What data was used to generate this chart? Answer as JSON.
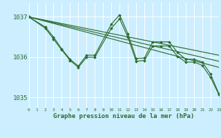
{
  "background_color": "#cceeff",
  "grid_color": "#ffffff",
  "line_color": "#2d6b2d",
  "xlabel": "Graphe pression niveau de la mer (hPa)",
  "xlim": [
    0,
    23
  ],
  "ylim": [
    1034.75,
    1037.35
  ],
  "yticks": [
    1035,
    1036,
    1037
  ],
  "xticks": [
    0,
    1,
    2,
    3,
    4,
    5,
    6,
    7,
    8,
    9,
    10,
    11,
    12,
    13,
    14,
    15,
    16,
    17,
    18,
    19,
    20,
    21,
    22,
    23
  ],
  "smooth_lines": [
    {
      "x": [
        0,
        23
      ],
      "y": [
        1037.0,
        1035.75
      ]
    },
    {
      "x": [
        0,
        23
      ],
      "y": [
        1037.0,
        1035.9
      ]
    },
    {
      "x": [
        0,
        23
      ],
      "y": [
        1037.0,
        1036.05
      ]
    }
  ],
  "jagged_series": [
    {
      "x": [
        0,
        2,
        3,
        4,
        5,
        6,
        7,
        8,
        10,
        11,
        12,
        13,
        14,
        15,
        16,
        17,
        18,
        19,
        20,
        21,
        22,
        23
      ],
      "y": [
        1037.0,
        1036.75,
        1036.5,
        1036.2,
        1035.95,
        1035.78,
        1036.05,
        1036.05,
        1036.82,
        1037.05,
        1036.58,
        1035.97,
        1035.98,
        1036.38,
        1036.38,
        1036.38,
        1036.12,
        1035.95,
        1035.95,
        1035.88,
        1035.58,
        1035.1
      ]
    },
    {
      "x": [
        0,
        2,
        3,
        4,
        5,
        6,
        7,
        8,
        10,
        11,
        12,
        13,
        14,
        15,
        16,
        17,
        18,
        19,
        20,
        21,
        22,
        23
      ],
      "y": [
        1037.0,
        1036.72,
        1036.45,
        1036.18,
        1035.92,
        1035.75,
        1036.0,
        1036.0,
        1036.72,
        1036.95,
        1036.5,
        1035.9,
        1035.92,
        1036.28,
        1036.28,
        1036.28,
        1036.02,
        1035.88,
        1035.88,
        1035.8,
        1035.5,
        1035.08
      ]
    }
  ]
}
